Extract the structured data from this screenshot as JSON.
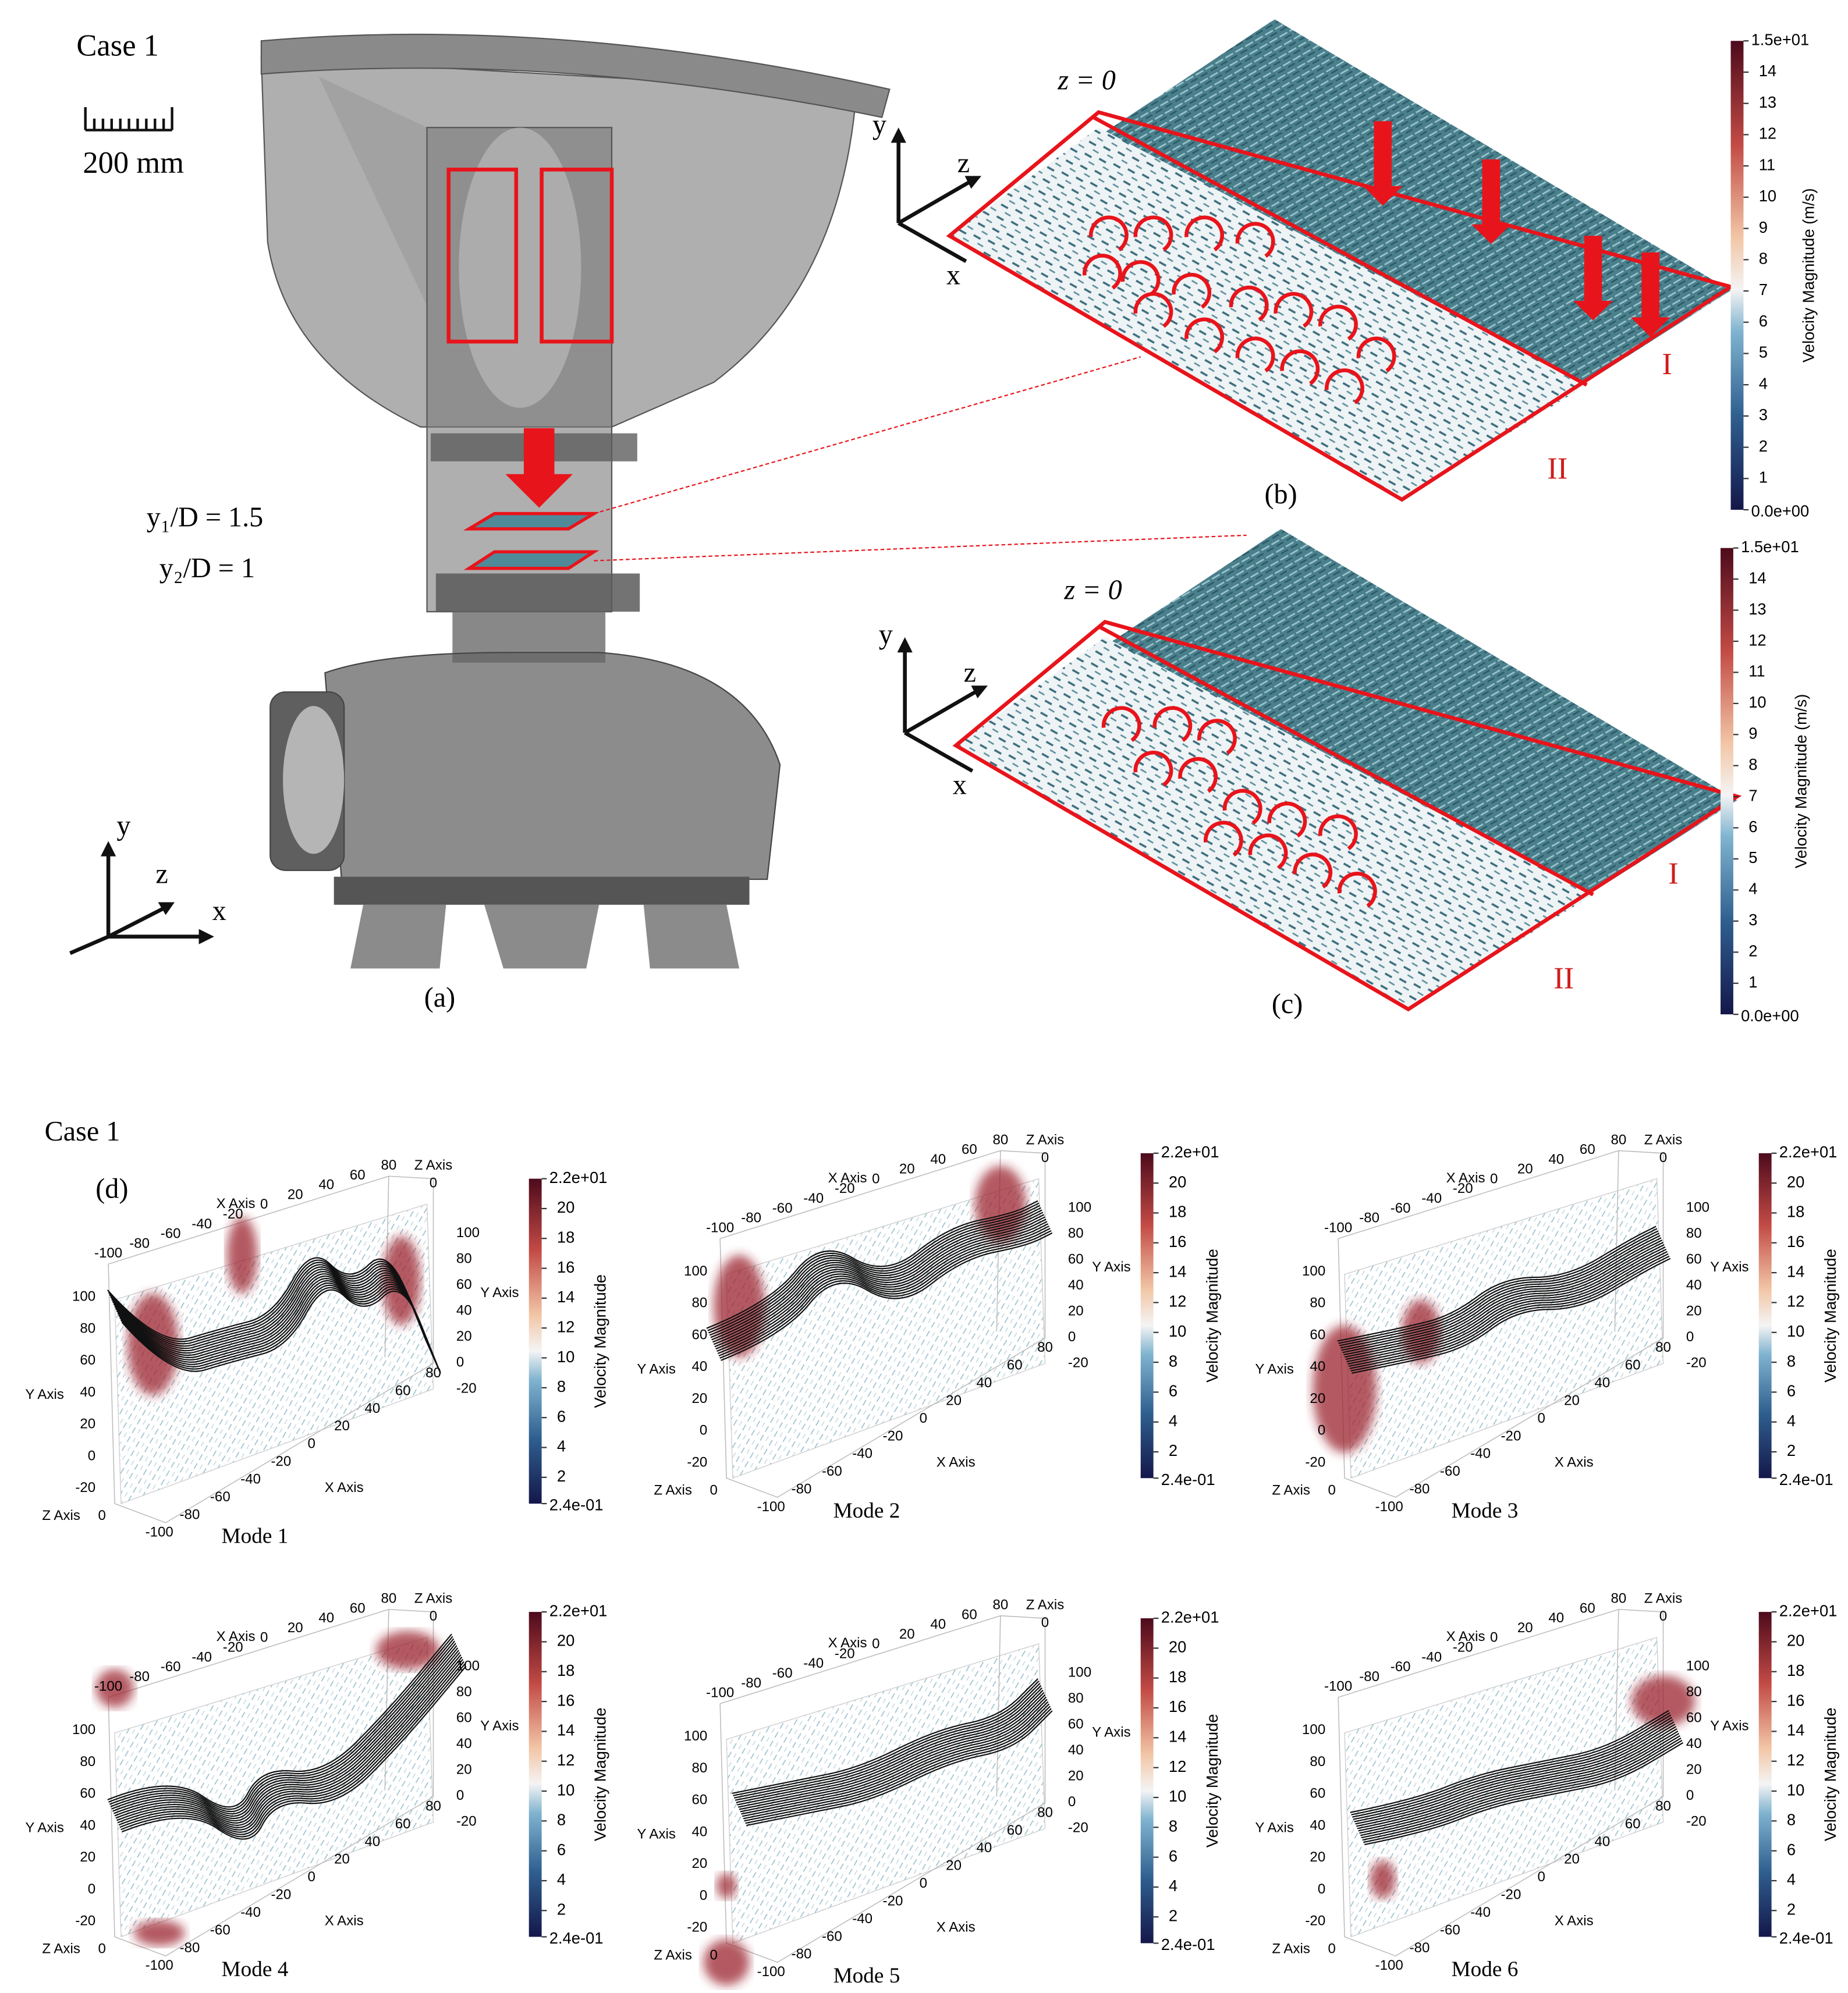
{
  "panel_a": {
    "case_label": "Case 1",
    "scale_bar": "200 mm",
    "plane_1": "y₁/D = 1.5",
    "plane_2": "y₂/D = 1",
    "axes": {
      "y": "y",
      "z": "z",
      "x": "x"
    },
    "label": "(a)"
  },
  "panel_b": {
    "plane": "z = 0",
    "axes": {
      "y": "y",
      "z": "z",
      "x": "x"
    },
    "region_1": "I",
    "region_2": "II",
    "label": "(b)"
  },
  "panel_c": {
    "plane": "z = 0",
    "axes": {
      "y": "y",
      "z": "z",
      "x": "x"
    },
    "region_1": "I",
    "region_2": "II",
    "label": "(c)"
  },
  "colorbar_top": {
    "max": {
      "value": 15,
      "label": "1.5e+01"
    },
    "ticks": [
      14,
      13,
      12,
      11,
      10,
      9,
      8,
      7,
      6,
      5,
      4,
      3,
      2,
      1
    ],
    "min": {
      "value": 0,
      "label": "0.0e+00"
    },
    "title": "Velocity Magnitude (m/s)"
  },
  "panel_d": {
    "case_label": "Case 1",
    "label": "(d)",
    "colorbar": {
      "max": {
        "value": 22,
        "label": "2.2e+01"
      },
      "ticks": [
        20,
        18,
        16,
        14,
        12,
        10,
        8,
        6,
        4,
        2
      ],
      "min": {
        "value": 0.24,
        "label": "2.4e-01"
      },
      "title": "Velocity Magnitude"
    },
    "axis_names": {
      "x": "X Axis",
      "y": "Y Axis",
      "z": "Z Axis"
    },
    "x_ticks": [
      -100,
      -80,
      -60,
      -40,
      -20,
      0,
      20,
      40,
      60,
      80
    ],
    "y_ticks": [
      100,
      80,
      60,
      40,
      20,
      0,
      -20
    ],
    "z_tick": 0,
    "modes": [
      "Mode 1",
      "Mode 2",
      "Mode 3",
      "Mode 4",
      "Mode 5",
      "Mode 6"
    ]
  }
}
